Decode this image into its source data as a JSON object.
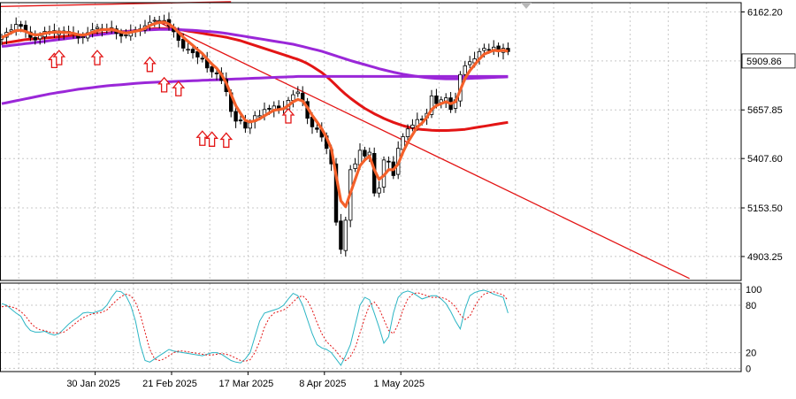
{
  "chart_data": {
    "type": "candlestick",
    "instrument_price_label": "5909.86",
    "main_panel": {
      "y_ticks": [
        4903.25,
        5153.5,
        5407.6,
        5657.85,
        6162.2
      ],
      "y_range": [
        4780,
        6210
      ],
      "x_tick_labels": [
        "30 Jan 2025",
        "21 Feb 2025",
        "17 Mar 2025",
        "8 Apr 2025",
        "1 May 2025"
      ],
      "x_tick_positions": [
        19,
        35,
        51,
        67,
        83
      ],
      "n_bars": 107,
      "closes": [
        6032,
        6057,
        6070,
        6098,
        6088,
        6065,
        6031,
        6018,
        6040,
        6062,
        6060,
        6052,
        6064,
        6056,
        6058,
        6049,
        6028,
        6034,
        6055,
        6070,
        6083,
        6072,
        6069,
        6081,
        6051,
        6038,
        6044,
        6062,
        6069,
        6074,
        6091,
        6109,
        6119,
        6118,
        6117,
        6090,
        6060,
        6016,
        5976,
        5970,
        5952,
        5930,
        5920,
        5874,
        5854,
        5847,
        5809,
        5752,
        5650,
        5600,
        5602,
        5564,
        5592,
        5628,
        5628,
        5660,
        5662,
        5678,
        5656,
        5668,
        5707,
        5736,
        5750,
        5701,
        5615,
        5571,
        5558,
        5518,
        5460,
        5380,
        5080,
        4940,
        5090,
        5350,
        5380,
        5450,
        5420,
        5440,
        5230,
        5255,
        5400,
        5390,
        5320,
        5460,
        5520,
        5560,
        5580,
        5608,
        5611,
        5640,
        5730,
        5690,
        5710,
        5720,
        5660,
        5710,
        5840,
        5885,
        5906,
        5921,
        5958,
        5975,
        5965,
        5981,
        5960,
        5975,
        5958
      ],
      "indicators": [
        {
          "name": "fast",
          "color": "#f4602a",
          "values": [
            6030,
            6042,
            6055,
            6066,
            6068,
            6062,
            6050,
            6044,
            6046,
            6052,
            6056,
            6058,
            6059,
            6057,
            6056,
            6052,
            6045,
            6043,
            6048,
            6058,
            6066,
            6070,
            6072,
            6073,
            6066,
            6058,
            6054,
            6058,
            6063,
            6068,
            6078,
            6092,
            6102,
            6108,
            6110,
            6100,
            6082,
            6058,
            6032,
            6010,
            5990,
            5968,
            5948,
            5920,
            5894,
            5872,
            5840,
            5796,
            5738,
            5680,
            5640,
            5604,
            5596,
            5602,
            5612,
            5628,
            5642,
            5656,
            5660,
            5664,
            5680,
            5700,
            5712,
            5704,
            5670,
            5630,
            5596,
            5560,
            5516,
            5460,
            5320,
            5190,
            5160,
            5230,
            5300,
            5370,
            5400,
            5420,
            5350,
            5300,
            5320,
            5350,
            5350,
            5380,
            5440,
            5490,
            5530,
            5570,
            5590,
            5620,
            5660,
            5680,
            5690,
            5700,
            5690,
            5700,
            5760,
            5820,
            5860,
            5890,
            5920,
            5945,
            5955,
            5965,
            5962,
            5965,
            5960
          ]
        },
        {
          "name": "ma-red",
          "color": "#e31515",
          "values": [
            6000,
            6004,
            6008,
            6012,
            6016,
            6020,
            6022,
            6024,
            6026,
            6028,
            6030,
            6032,
            6034,
            6036,
            6038,
            6040,
            6042,
            6044,
            6046,
            6048,
            6050,
            6052,
            6054,
            6056,
            6058,
            6060,
            6062,
            6064,
            6066,
            6068,
            6070,
            6074,
            6076,
            6077,
            6077,
            6076,
            6074,
            6072,
            6068,
            6064,
            6060,
            6056,
            6052,
            6048,
            6044,
            6040,
            6036,
            6032,
            6026,
            6020,
            6014,
            6006,
            5998,
            5990,
            5982,
            5974,
            5966,
            5958,
            5950,
            5942,
            5934,
            5926,
            5918,
            5908,
            5896,
            5882,
            5866,
            5850,
            5830,
            5808,
            5784,
            5760,
            5738,
            5718,
            5700,
            5682,
            5666,
            5652,
            5638,
            5626,
            5614,
            5604,
            5594,
            5585,
            5577,
            5570,
            5565,
            5560,
            5557,
            5555,
            5553,
            5552,
            5552,
            5552,
            5553,
            5554,
            5556,
            5558,
            5562,
            5566,
            5570,
            5574,
            5578,
            5582,
            5586,
            5590,
            5594
          ]
        },
        {
          "name": "ma-purple-upper",
          "color": "#9a27d8",
          "values": [
            5985,
            5987,
            5990,
            5993,
            5996,
            5999,
            6002,
            6005,
            6008,
            6011,
            6014,
            6017,
            6020,
            6023,
            6026,
            6029,
            6032,
            6035,
            6038,
            6041,
            6044,
            6047,
            6050,
            6053,
            6056,
            6059,
            6061,
            6063,
            6065,
            6067,
            6069,
            6070,
            6071,
            6072,
            6072,
            6072,
            6071,
            6071,
            6070,
            6069,
            6068,
            6066,
            6064,
            6062,
            6060,
            6058,
            6055,
            6052,
            6048,
            6044,
            6040,
            6036,
            6032,
            6028,
            6024,
            6020,
            6016,
            6012,
            6008,
            6004,
            6000,
            5996,
            5990,
            5984,
            5978,
            5972,
            5966,
            5960,
            5952,
            5944,
            5936,
            5928,
            5920,
            5912,
            5905,
            5898,
            5891,
            5884,
            5877,
            5870,
            5864,
            5858,
            5852,
            5847,
            5842,
            5838,
            5834,
            5830,
            5827,
            5824,
            5822,
            5820,
            5819,
            5818,
            5818,
            5818,
            5818,
            5819,
            5820,
            5821,
            5822,
            5823,
            5824,
            5825,
            5826,
            5827,
            5828
          ]
        },
        {
          "name": "ma-purple-lower",
          "color": "#9a27d8",
          "values": [
            5690,
            5695,
            5700,
            5705,
            5710,
            5715,
            5720,
            5725,
            5730,
            5735,
            5740,
            5744,
            5748,
            5752,
            5756,
            5760,
            5764,
            5767,
            5770,
            5773,
            5776,
            5779,
            5782,
            5784,
            5786,
            5788,
            5790,
            5792,
            5794,
            5796,
            5798,
            5799,
            5800,
            5801,
            5802,
            5803,
            5804,
            5805,
            5806,
            5807,
            5808,
            5809,
            5810,
            5811,
            5812,
            5813,
            5814,
            5815,
            5816,
            5817,
            5818,
            5819,
            5820,
            5821,
            5822,
            5823,
            5824,
            5825,
            5826,
            5827,
            5828,
            5829,
            5830,
            5830,
            5830,
            5830,
            5830,
            5830,
            5830,
            5830,
            5830,
            5830,
            5830,
            5830,
            5830,
            5830,
            5830,
            5830,
            5830,
            5830,
            5830,
            5830,
            5830,
            5830,
            5830,
            5830,
            5830,
            5830,
            5830,
            5830,
            5830,
            5830,
            5830,
            5830,
            5830,
            5830,
            5830,
            5830,
            5830,
            5830,
            5830,
            5830,
            5830,
            5830,
            5830,
            5830,
            5830
          ]
        }
      ],
      "trendlines": [
        {
          "name": "trend-top",
          "color": "#e31515",
          "from": [
            -1,
            6190
          ],
          "to": [
            48,
            6215
          ]
        },
        {
          "name": "trend-down",
          "color": "#e31515",
          "from": [
            32,
            6120
          ],
          "to": [
            144,
            4790
          ]
        }
      ],
      "up_arrows": [
        {
          "bar": 11,
          "price": 5985
        },
        {
          "bar": 12,
          "price": 6000
        },
        {
          "bar": 20,
          "price": 6000
        },
        {
          "bar": 31,
          "price": 5965
        },
        {
          "bar": 34,
          "price": 5860
        },
        {
          "bar": 37,
          "price": 5840
        },
        {
          "bar": 42,
          "price": 5585
        },
        {
          "bar": 44,
          "price": 5580
        },
        {
          "bar": 47,
          "price": 5575
        },
        {
          "bar": 60,
          "price": 5700
        }
      ]
    },
    "oscillator_panel": {
      "y_ticks": [
        0,
        20,
        80,
        100
      ],
      "y_range": [
        -4,
        108
      ],
      "main": {
        "color": "#2bb5c4",
        "values": [
          82,
          80,
          75,
          70,
          66,
          55,
          48,
          46,
          46,
          47,
          44,
          42,
          44,
          50,
          56,
          61,
          65,
          70,
          71,
          70,
          72,
          74,
          80,
          90,
          98,
          97,
          92,
          80,
          60,
          30,
          10,
          8,
          12,
          16,
          20,
          24,
          22,
          21,
          20,
          19,
          18,
          17,
          16,
          18,
          20,
          20,
          18,
          14,
          10,
          8,
          7,
          12,
          20,
          40,
          60,
          70,
          72,
          74,
          76,
          80,
          88,
          95,
          92,
          80,
          62,
          44,
          30,
          26,
          24,
          20,
          12,
          4,
          16,
          30,
          55,
          80,
          90,
          87,
          70,
          52,
          32,
          40,
          70,
          90,
          96,
          98,
          96,
          92,
          88,
          90,
          92,
          92,
          88,
          82,
          72,
          60,
          50,
          75,
          92,
          96,
          98,
          99,
          97,
          94,
          92,
          90,
          70
        ]
      },
      "signal": {
        "color": "#e31515",
        "values": [
          78,
          79,
          78,
          76,
          72,
          66,
          58,
          52,
          49,
          48,
          46,
          45,
          45,
          46,
          50,
          55,
          60,
          64,
          67,
          69,
          70,
          71,
          74,
          80,
          86,
          91,
          94,
          92,
          84,
          68,
          46,
          24,
          12,
          10,
          12,
          16,
          20,
          22,
          22,
          21,
          20,
          19,
          18,
          17,
          17,
          18,
          19,
          18,
          16,
          13,
          10,
          9,
          11,
          20,
          34,
          52,
          64,
          70,
          72,
          74,
          78,
          84,
          90,
          92,
          86,
          74,
          58,
          44,
          34,
          28,
          22,
          14,
          10,
          15,
          26,
          45,
          64,
          80,
          84,
          76,
          62,
          48,
          44,
          56,
          74,
          88,
          94,
          96,
          94,
          92,
          90,
          90,
          90,
          88,
          84,
          78,
          68,
          62,
          66,
          78,
          88,
          94,
          96,
          97,
          95,
          93,
          86
        ]
      }
    }
  }
}
